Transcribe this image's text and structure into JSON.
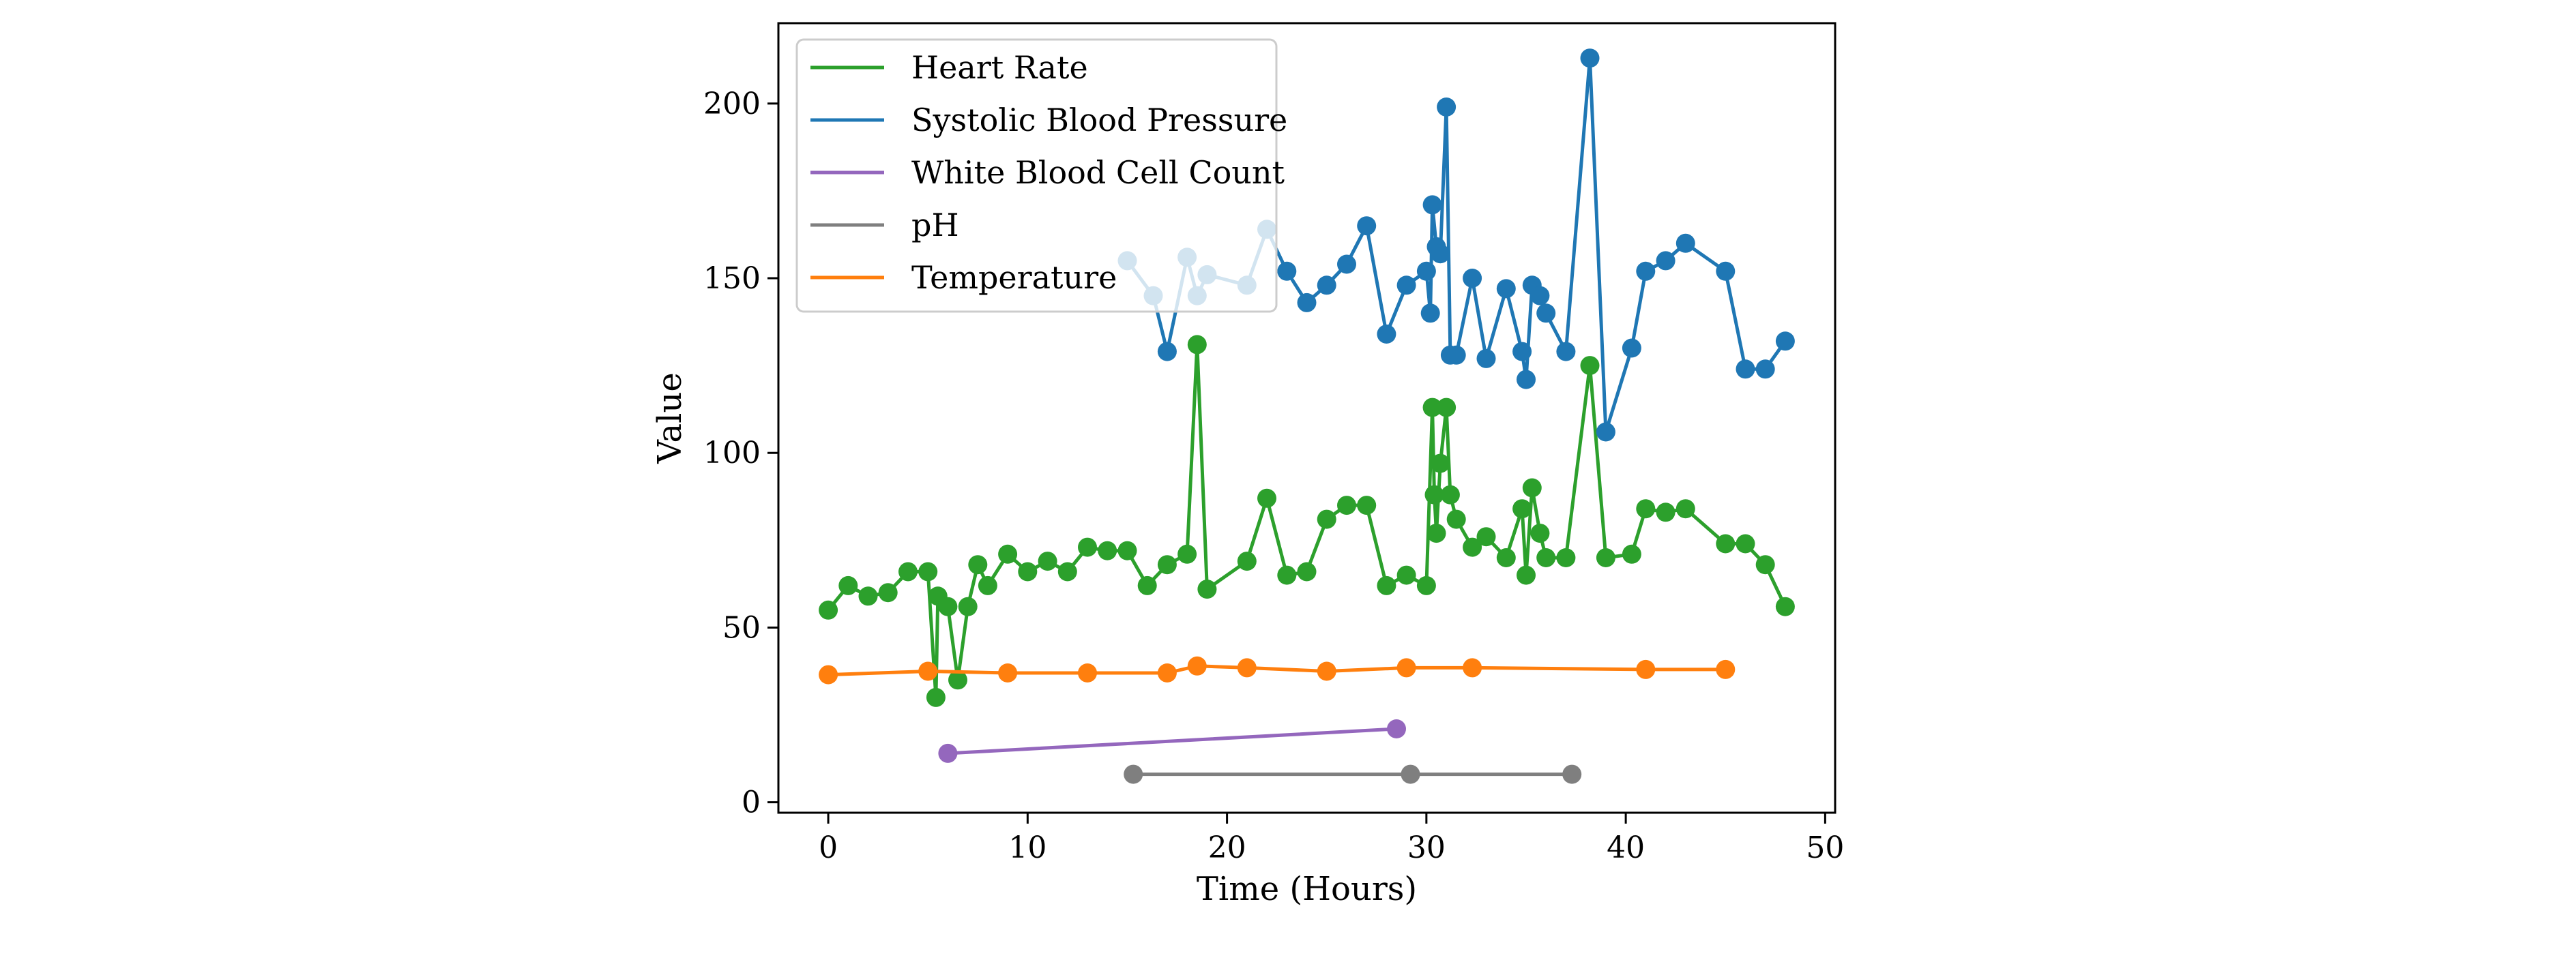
{
  "chart_data": {
    "type": "line",
    "title": "",
    "xlabel": "Time (Hours)",
    "ylabel": "Value",
    "xlim": [
      -2.5,
      50.5
    ],
    "ylim": [
      -3,
      223
    ],
    "xticks": [
      0,
      10,
      20,
      30,
      40,
      50
    ],
    "yticks": [
      0,
      50,
      100,
      150,
      200
    ],
    "grid": false,
    "legend_position": "top-left",
    "series": [
      {
        "name": "Heart Rate",
        "color": "#2ca02c",
        "points": [
          [
            0,
            55
          ],
          [
            1,
            62
          ],
          [
            2,
            59
          ],
          [
            3,
            60
          ],
          [
            4,
            66
          ],
          [
            5,
            66
          ],
          [
            5.4,
            30
          ],
          [
            5.5,
            59
          ],
          [
            6,
            56
          ],
          [
            6.5,
            35
          ],
          [
            7,
            56
          ],
          [
            7.5,
            68
          ],
          [
            8,
            62
          ],
          [
            9,
            71
          ],
          [
            10,
            66
          ],
          [
            11,
            69
          ],
          [
            12,
            66
          ],
          [
            13,
            73
          ],
          [
            14,
            72
          ],
          [
            15,
            72
          ],
          [
            16,
            62
          ],
          [
            17,
            68
          ],
          [
            18,
            71
          ],
          [
            18.5,
            131
          ],
          [
            19,
            61
          ],
          [
            21,
            69
          ],
          [
            22,
            87
          ],
          [
            23,
            65
          ],
          [
            24,
            66
          ],
          [
            25,
            81
          ],
          [
            26,
            85
          ],
          [
            27,
            85
          ],
          [
            28,
            62
          ],
          [
            29,
            65
          ],
          [
            30,
            62
          ],
          [
            30.3,
            113
          ],
          [
            30.4,
            88
          ],
          [
            30.5,
            77
          ],
          [
            30.7,
            97
          ],
          [
            31,
            113
          ],
          [
            31.2,
            88
          ],
          [
            31.5,
            81
          ],
          [
            32.3,
            73
          ],
          [
            33,
            76
          ],
          [
            34,
            70
          ],
          [
            34.8,
            84
          ],
          [
            35,
            65
          ],
          [
            35.3,
            90
          ],
          [
            35.7,
            77
          ],
          [
            36,
            70
          ],
          [
            37,
            70
          ],
          [
            38.2,
            125
          ],
          [
            39,
            70
          ],
          [
            40.3,
            71
          ],
          [
            41,
            84
          ],
          [
            42,
            83
          ],
          [
            43,
            84
          ],
          [
            45,
            74
          ],
          [
            46,
            74
          ],
          [
            47,
            68
          ],
          [
            48,
            56
          ]
        ]
      },
      {
        "name": "Systolic Blood Pressure",
        "color": "#1f77b4",
        "points": [
          [
            15,
            155
          ],
          [
            16.3,
            145
          ],
          [
            17,
            129
          ],
          [
            18,
            156
          ],
          [
            18.5,
            145
          ],
          [
            19,
            151
          ],
          [
            21,
            148
          ],
          [
            22,
            164
          ],
          [
            23,
            152
          ],
          [
            24,
            143
          ],
          [
            25,
            148
          ],
          [
            26,
            154
          ],
          [
            27,
            165
          ],
          [
            28,
            134
          ],
          [
            29,
            148
          ],
          [
            30,
            152
          ],
          [
            30.2,
            140
          ],
          [
            30.3,
            171
          ],
          [
            30.5,
            159
          ],
          [
            30.7,
            157
          ],
          [
            31,
            199
          ],
          [
            31.2,
            128
          ],
          [
            31.5,
            128
          ],
          [
            32.3,
            150
          ],
          [
            33,
            127
          ],
          [
            34,
            147
          ],
          [
            34.8,
            129
          ],
          [
            35,
            121
          ],
          [
            35.3,
            148
          ],
          [
            35.7,
            145
          ],
          [
            36,
            140
          ],
          [
            37,
            129
          ],
          [
            38.2,
            213
          ],
          [
            39,
            106
          ],
          [
            40.3,
            130
          ],
          [
            41,
            152
          ],
          [
            42,
            155
          ],
          [
            43,
            160
          ],
          [
            45,
            152
          ],
          [
            46,
            124
          ],
          [
            47,
            124
          ],
          [
            48,
            132
          ]
        ]
      },
      {
        "name": "White Blood Cell Count",
        "color": "#9467bd",
        "points": [
          [
            6,
            14
          ],
          [
            28.5,
            21
          ]
        ]
      },
      {
        "name": "pH",
        "color": "#7f7f7f",
        "points": [
          [
            15.3,
            8
          ],
          [
            29.2,
            8
          ],
          [
            37.3,
            8
          ]
        ]
      },
      {
        "name": "Temperature",
        "color": "#ff7f0e",
        "points": [
          [
            0,
            36.5
          ],
          [
            5,
            37.5
          ],
          [
            9,
            37
          ],
          [
            13,
            37
          ],
          [
            17,
            37
          ],
          [
            18.5,
            39
          ],
          [
            21,
            38.5
          ],
          [
            25,
            37.5
          ],
          [
            29,
            38.5
          ],
          [
            32.3,
            38.5
          ],
          [
            41,
            38
          ],
          [
            45,
            38
          ]
        ]
      }
    ]
  }
}
